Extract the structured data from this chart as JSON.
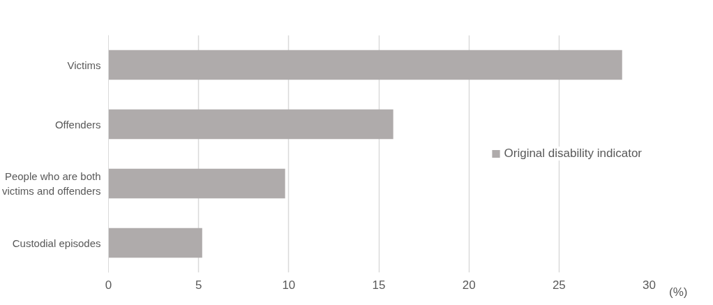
{
  "chart_data": {
    "type": "bar",
    "orientation": "horizontal",
    "xlabel": "(%)",
    "categories": [
      "Victims",
      "Offenders",
      "People who are both victims and offenders",
      "Custodial episodes"
    ],
    "series": [
      {
        "name": "Original disability indicator",
        "color": "#afabab",
        "values": [
          28.5,
          15.8,
          9.8,
          5.2
        ]
      }
    ],
    "xlim": [
      0,
      30
    ],
    "xticks": [
      0,
      5,
      10,
      15,
      20,
      25,
      30
    ],
    "grid": "x",
    "legend": "right"
  }
}
